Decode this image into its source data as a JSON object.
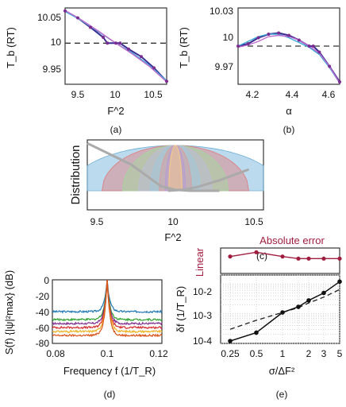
{
  "panels": {
    "a": {
      "caption": "(a)",
      "ylabel": "T_b (RT)",
      "xlabel": "F^2",
      "yticks": [
        "10.05",
        "10",
        "9.95"
      ],
      "xticks": [
        "9.5",
        "10",
        "10.5"
      ]
    },
    "b": {
      "caption": "(b)",
      "ylabel": "T_b (RT)",
      "xlabel": "α",
      "yticks": [
        "10.03",
        "10",
        "9.97"
      ],
      "xticks": [
        "4.2",
        "4.4",
        "4.6"
      ]
    },
    "c": {
      "caption": "(c)",
      "ylabel": "Distribution",
      "xlabel": "F^2",
      "xticks": [
        "9.5",
        "10",
        "10.5"
      ]
    },
    "d": {
      "caption": "(d)",
      "ylabel": "S(f) {|ψ|²max} (dB)",
      "xlabel": "Frequency f (1/T_R)",
      "yticks": [
        "0",
        "-20",
        "-40",
        "-60",
        "-80"
      ],
      "xticks": [
        "0.08",
        "0.1",
        "0.12"
      ]
    },
    "e": {
      "caption": "(e)",
      "ylabel": "δf (1/T_R)",
      "xlabel": "σ/ΔF²",
      "yticks": [
        "10-2",
        "10-3",
        "10-4"
      ],
      "xticks": [
        "0.25",
        "0.5",
        "1",
        "2",
        "3",
        "5"
      ],
      "top_label": "Absolute error",
      "top_left_label": "Linear"
    }
  },
  "colors": {
    "dark": "#3b2a8f",
    "cyan": "#3aa9d6",
    "magenta": "#c06bd0",
    "purple": "#7b2c91",
    "dash": "#333333",
    "gray": "#aaaaaa",
    "red": "#a11d3f",
    "spectra": [
      "#1f77b4",
      "#2ca02c",
      "#7e2f8e",
      "#d62728",
      "#edb120",
      "#d95319"
    ],
    "dists": [
      "#6baed6",
      "#e07a7a",
      "#a1d99b",
      "#bcbddc",
      "#9ecae1",
      "#dd9999",
      "#b59ad6",
      "#ffd27f"
    ]
  },
  "chart_data": [
    {
      "type": "line",
      "panel": "a",
      "xlabel": "F^2",
      "ylabel": "T_b (RT)",
      "xlim": [
        9.4,
        10.6
      ],
      "ylim": [
        9.93,
        10.06
      ],
      "reference_y": 10,
      "series": [
        {
          "x": [
            9.4,
            9.55,
            9.7,
            9.85,
            9.9,
            10.0,
            10.05,
            10.15,
            10.3,
            10.45,
            10.6
          ],
          "y": [
            10.055,
            10.043,
            10.027,
            10.01,
            10.0,
            10.0,
            10.0,
            9.99,
            9.977,
            9.958,
            9.935
          ]
        },
        {
          "x": [
            9.4,
            9.6,
            9.8,
            10.0,
            10.2,
            10.4,
            10.6
          ],
          "y": [
            10.054,
            10.038,
            10.019,
            10.0,
            9.983,
            9.962,
            9.936
          ]
        },
        {
          "x": [
            9.4,
            9.6,
            9.8,
            10.0,
            10.2,
            10.4,
            10.6
          ],
          "y": [
            10.056,
            10.039,
            10.02,
            10.0,
            9.981,
            9.96,
            9.934
          ]
        }
      ]
    },
    {
      "type": "line",
      "panel": "b",
      "xlabel": "α",
      "ylabel": "T_b (RT)",
      "xlim": [
        4.15,
        4.65
      ],
      "ylim": [
        9.968,
        10.032
      ],
      "reference_y": 10,
      "series": [
        {
          "x": [
            4.15,
            4.2,
            4.25,
            4.3,
            4.35,
            4.4,
            4.45,
            4.5,
            4.52,
            4.55,
            4.6,
            4.65
          ],
          "y": [
            10.0,
            10.002,
            10.007,
            10.01,
            10.011,
            10.009,
            10.005,
            10.0,
            10.0,
            9.995,
            9.983,
            9.97
          ]
        },
        {
          "x": [
            4.15,
            4.2,
            4.25,
            4.3,
            4.35,
            4.4,
            4.45,
            4.5,
            4.55,
            4.6,
            4.65
          ],
          "y": [
            10.0,
            10.004,
            10.008,
            10.01,
            10.01,
            10.007,
            10.003,
            9.999,
            9.993,
            9.982,
            9.969
          ]
        },
        {
          "x": [
            4.15,
            4.2,
            4.25,
            4.3,
            4.35,
            4.4,
            4.45,
            4.5,
            4.55,
            4.6,
            4.65
          ],
          "y": [
            9.999,
            10.001,
            10.004,
            10.008,
            10.009,
            10.008,
            10.005,
            10.0,
            9.994,
            9.983,
            9.969
          ]
        }
      ]
    },
    {
      "type": "area",
      "panel": "c",
      "xlabel": "F^2",
      "ylabel": "Distribution",
      "xlim": [
        9.4,
        10.6
      ],
      "center": 10.0,
      "widths": [
        0.72,
        0.5,
        0.36,
        0.25,
        0.17,
        0.11,
        0.07,
        0.045
      ],
      "gray_curves": [
        {
          "x": [
            9.4,
            9.7,
            9.9,
            10.0,
            10.1,
            10.3
          ],
          "y": [
            1.0,
            0.55,
            0.1,
            0.02,
            0.0,
            0.0
          ]
        },
        {
          "x": [
            9.95,
            10.05,
            10.15,
            10.3,
            10.5
          ],
          "y": [
            0.0,
            0.02,
            0.08,
            0.22,
            0.45
          ]
        }
      ]
    },
    {
      "type": "line",
      "panel": "d",
      "xlabel": "Frequency f (1/T_R)",
      "ylabel": "S(f) {|ψ|²max} (dB)",
      "xlim": [
        0.08,
        0.12
      ],
      "ylim": [
        -80,
        0
      ],
      "peak_x": 0.1,
      "series_floor_db": [
        -40,
        -50,
        -55,
        -60,
        -65,
        -70
      ]
    },
    {
      "type": "line",
      "panel": "e",
      "xlabel": "σ/ΔF²",
      "ylabel": "δf (1/T_R)",
      "x": [
        0.25,
        0.5,
        1,
        1.5,
        2,
        3,
        5
      ],
      "series": [
        {
          "name": "",
          "y": [
            0.00012,
            0.00023,
            0.0011,
            0.0017,
            0.0028,
            0.005,
            0.012
          ]
        },
        {
          "name": "Linear",
          "y": [
            0.0003,
            0.0006,
            0.0011,
            0.0016,
            0.0023,
            0.0036,
            0.0065
          ]
        }
      ],
      "absolute_error": [
        0.8,
        1.0,
        0.8,
        0.7,
        0.7,
        0.7,
        0.7
      ],
      "ylim": [
        0.0001,
        0.02
      ]
    }
  ]
}
